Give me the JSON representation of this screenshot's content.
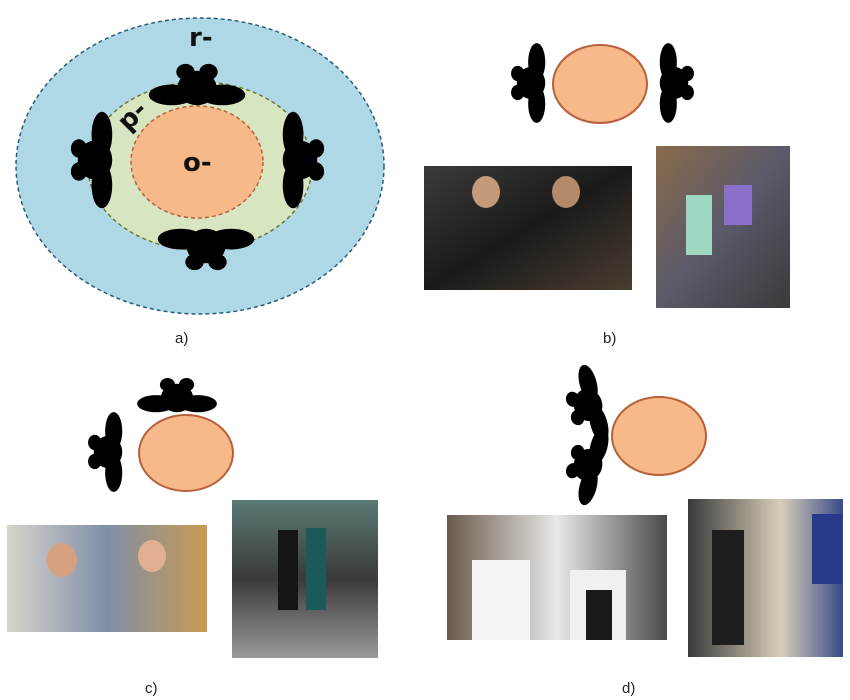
{
  "zones": {
    "r_label": "r-",
    "p_label": "p-",
    "o_label": "o-"
  },
  "panel_labels": {
    "a": "a)",
    "b": "b)",
    "c": "c)",
    "d": "d)"
  },
  "colors": {
    "r_space": "#aed8e6",
    "p_space": "#d7e5c0",
    "o_space": "#f7b98a",
    "outline": "#2a5b7a"
  },
  "photos": {
    "b_left": "two men in suits talking at an evening reception",
    "b_right": "woman in dress and man talking at a party",
    "c_left": "two men gesturing in conversation",
    "c_right": "group of people standing in a hall",
    "d_left": "two chefs in white coats talking",
    "d_right": "people standing near poster boards"
  }
}
